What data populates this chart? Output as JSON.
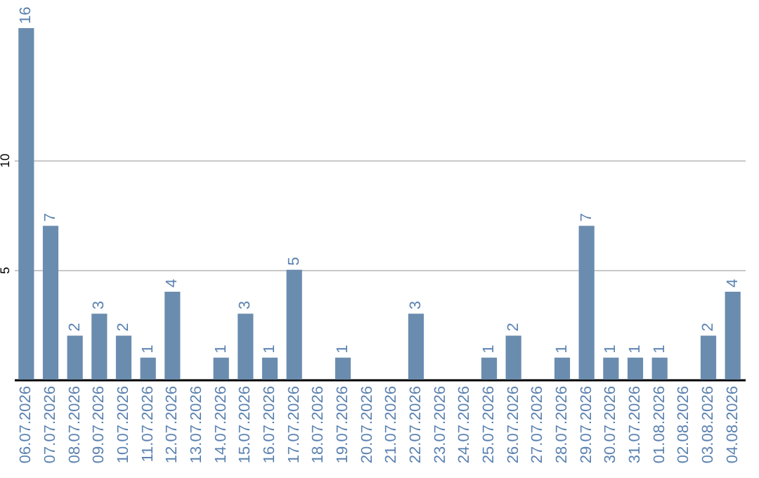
{
  "chart_data": {
    "type": "bar",
    "categories": [
      "06.07.2026",
      "07.07.2026",
      "08.07.2026",
      "09.07.2026",
      "10.07.2026",
      "11.07.2026",
      "12.07.2026",
      "13.07.2026",
      "14.07.2026",
      "15.07.2026",
      "16.07.2026",
      "17.07.2026",
      "18.07.2026",
      "19.07.2026",
      "20.07.2026",
      "21.07.2026",
      "22.07.2026",
      "23.07.2026",
      "24.07.2026",
      "25.07.2026",
      "26.07.2026",
      "27.07.2026",
      "28.07.2026",
      "29.07.2026",
      "30.07.2026",
      "31.07.2026",
      "01.08.2026",
      "02.08.2026",
      "03.08.2026",
      "04.08.2026"
    ],
    "values": [
      16,
      7,
      2,
      3,
      2,
      1,
      4,
      0,
      1,
      3,
      1,
      5,
      0,
      1,
      0,
      0,
      3,
      0,
      0,
      1,
      2,
      0,
      1,
      7,
      1,
      1,
      1,
      0,
      2,
      4
    ],
    "value_labels": [
      "16",
      "7",
      "2",
      "3",
      "2",
      "1",
      "4",
      null,
      "1",
      "3",
      "1",
      "5",
      null,
      "1",
      null,
      null,
      "3",
      null,
      null,
      "1",
      "2",
      null,
      "1",
      "7",
      "1",
      "1",
      "1",
      null,
      "2",
      "4"
    ],
    "color": "#6a8caf",
    "ylim": [
      0,
      16
    ],
    "yticks": [
      5,
      10
    ],
    "grid": "y"
  }
}
